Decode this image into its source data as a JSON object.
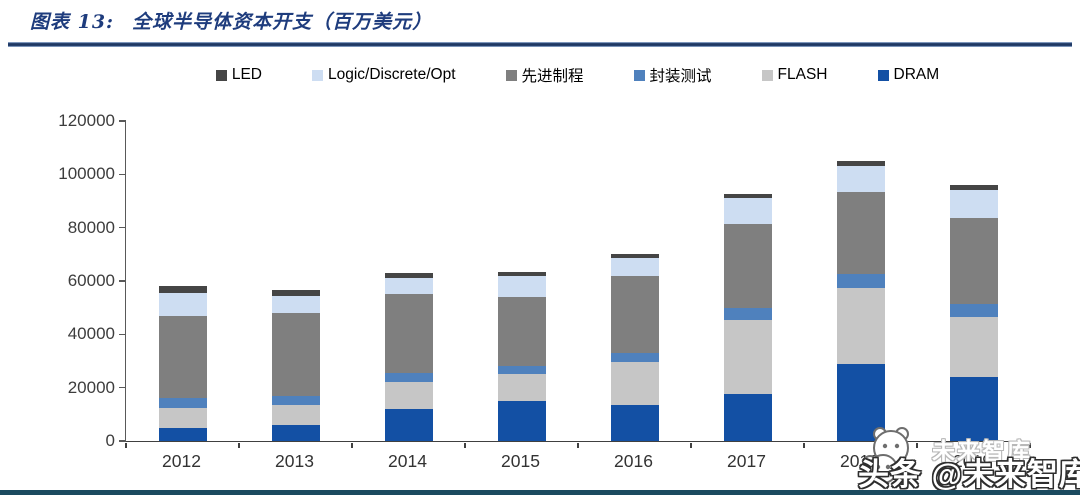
{
  "header": {
    "title_prefix": "图表 13:",
    "title_text": "全球半导体资本开支（百万美元）"
  },
  "watermark": {
    "faint_text": "未来智库",
    "main_text": "头条 @未来智库",
    "mascot": "panda-face-icon"
  },
  "colors": {
    "title_blue": "#1e3c7d",
    "title_rule": "#1f3864",
    "bottom_rule": "#1b4a5f",
    "axis": "#595959"
  },
  "chart_data": {
    "type": "bar",
    "stacked": true,
    "title": "全球半导体资本开支（百万美元）",
    "xlabel": "",
    "ylabel": "",
    "ylim": [
      0,
      120000
    ],
    "yticks": [
      0,
      20000,
      40000,
      60000,
      80000,
      100000,
      120000
    ],
    "grid": false,
    "legend_position": "top",
    "categories": [
      "2012",
      "2013",
      "2014",
      "2015",
      "2016",
      "2017",
      "2018",
      "2019"
    ],
    "series": [
      {
        "name": "DRAM",
        "color": "#1350a4",
        "values": [
          5000,
          6000,
          12000,
          15000,
          13500,
          17500,
          29000,
          24000
        ]
      },
      {
        "name": "FLASH",
        "color": "#c6c6c6",
        "values": [
          7500,
          7500,
          10000,
          10000,
          16000,
          28000,
          28500,
          22500
        ]
      },
      {
        "name": "封装测试",
        "color": "#4f81bd",
        "values": [
          3500,
          3500,
          3500,
          3000,
          3500,
          4500,
          5000,
          5000
        ]
      },
      {
        "name": "先进制程",
        "color": "#7f7f7f",
        "values": [
          31000,
          31000,
          29500,
          26000,
          29000,
          31500,
          31000,
          32000
        ]
      },
      {
        "name": "Logic/Discrete/Opt",
        "color": "#cdddf2",
        "values": [
          8500,
          6500,
          6000,
          8000,
          6500,
          9500,
          9500,
          10500
        ]
      },
      {
        "name": "LED",
        "color": "#454545",
        "values": [
          2500,
          2000,
          2000,
          1500,
          1500,
          1500,
          2000,
          2000
        ]
      }
    ],
    "legend_order": [
      "LED",
      "Logic/Discrete/Opt",
      "先进制程",
      "封装测试",
      "FLASH",
      "DRAM"
    ],
    "totals": [
      58000,
      56500,
      63000,
      63500,
      70000,
      92500,
      105000,
      96000
    ]
  }
}
